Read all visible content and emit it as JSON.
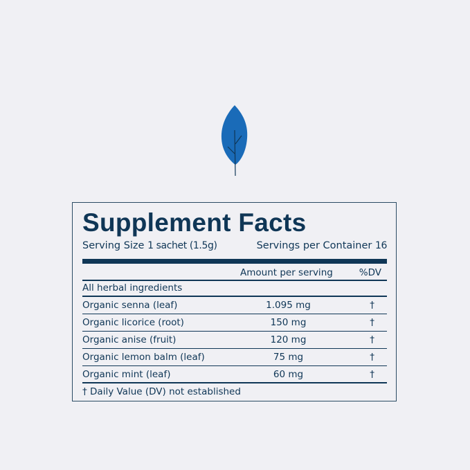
{
  "brand": {
    "leaf_icon": "leaf-icon",
    "leaf_color": "#1a6bb8",
    "text_color": "#0f3656",
    "background": "#f0f0f4"
  },
  "facts": {
    "title": "Supplement Facts",
    "serving_size_label": "Serving Size",
    "serving_size_value": "1 sachet (1.5g)",
    "servings_label": "Servings per Container",
    "servings_value": "16",
    "col_amount": "Amount per serving",
    "col_dv": "%DV",
    "group": "All herbal ingredients",
    "rows": [
      {
        "name": "Organic senna (leaf)",
        "amount": "1.095 mg",
        "dv": "†"
      },
      {
        "name": "Organic licorice (root)",
        "amount": "150 mg",
        "dv": "†"
      },
      {
        "name": "Organic anise (fruit)",
        "amount": "120 mg",
        "dv": "†"
      },
      {
        "name": "Organic lemon balm (leaf)",
        "amount": "75 mg",
        "dv": "†"
      },
      {
        "name": "Organic mint (leaf)",
        "amount": "60 mg",
        "dv": "†"
      }
    ],
    "footnote": "† Daily Value (DV) not established"
  }
}
